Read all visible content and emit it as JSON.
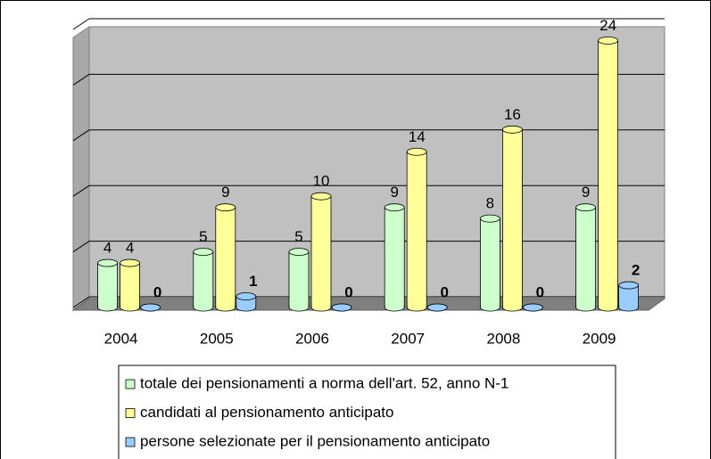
{
  "chart_data": {
    "type": "bar3d",
    "categories": [
      "2004",
      "2005",
      "2006",
      "2007",
      "2008",
      "2009"
    ],
    "series": [
      {
        "name": "totale dei pensionamenti a norma dell'art. 52, anno N-1",
        "color": "#ccffcc",
        "values": [
          4,
          5,
          5,
          9,
          8,
          9
        ]
      },
      {
        "name": "candidati al pensionamento anticipato",
        "color": "#ffff99",
        "values": [
          4,
          9,
          10,
          14,
          16,
          24
        ]
      },
      {
        "name": "persone selezionate per il pensionamento anticipato",
        "color": "#99ccff",
        "values": [
          0,
          1,
          0,
          0,
          0,
          2
        ],
        "bold_labels": true
      }
    ],
    "ylim": [
      0,
      25
    ],
    "yticks": [
      0,
      5,
      10,
      15,
      20,
      25
    ],
    "grid": true,
    "legend": "bottom"
  }
}
